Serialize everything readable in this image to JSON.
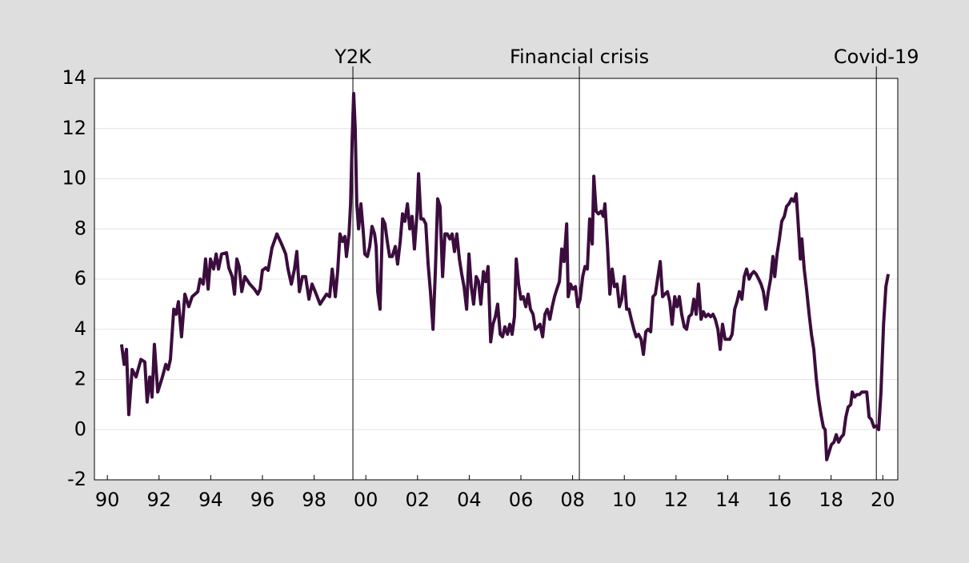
{
  "chart_data": {
    "type": "line",
    "x": [
      1991.05,
      1991.15,
      1991.24,
      1991.33,
      1991.46,
      1991.61,
      1991.8,
      1991.95,
      1992.04,
      1992.14,
      1992.23,
      1992.32,
      1992.45,
      1992.63,
      1992.76,
      1992.85,
      1992.94,
      1993.07,
      1993.16,
      1993.25,
      1993.37,
      1993.5,
      1993.65,
      1993.78,
      1994.0,
      1994.09,
      1994.21,
      1994.3,
      1994.4,
      1994.49,
      1994.61,
      1994.71,
      1994.8,
      1994.92,
      1995.11,
      1995.2,
      1995.33,
      1995.42,
      1995.51,
      1995.6,
      1995.7,
      1995.82,
      1996.01,
      1996.19,
      1996.32,
      1996.41,
      1996.5,
      1996.63,
      1996.72,
      1996.87,
      1997.06,
      1997.24,
      1997.4,
      1997.49,
      1997.62,
      1997.74,
      1997.83,
      1997.93,
      1998.05,
      1998.17,
      1998.3,
      1998.42,
      1998.58,
      1998.73,
      1998.98,
      1999.1,
      1999.2,
      1999.32,
      1999.41,
      1999.5,
      1999.6,
      1999.69,
      1999.75,
      1999.85,
      1999.91,
      1999.97,
      2000.03,
      2000.09,
      2000.15,
      2000.22,
      2000.31,
      2000.4,
      2000.46,
      2000.56,
      2000.65,
      2000.74,
      2000.84,
      2000.9,
      2000.96,
      2001.05,
      2001.15,
      2001.24,
      2001.33,
      2001.42,
      2001.52,
      2001.64,
      2001.73,
      2001.83,
      2001.92,
      2002.01,
      2002.11,
      2002.2,
      2002.29,
      2002.38,
      2002.48,
      2002.54,
      2002.63,
      2002.72,
      2002.82,
      2002.91,
      2003.0,
      2003.1,
      2003.19,
      2003.28,
      2003.37,
      2003.47,
      2003.56,
      2003.65,
      2003.75,
      2003.84,
      2003.93,
      2004.02,
      2004.12,
      2004.21,
      2004.3,
      2004.4,
      2004.49,
      2004.58,
      2004.67,
      2004.77,
      2004.86,
      2004.95,
      2005.05,
      2005.14,
      2005.23,
      2005.33,
      2005.42,
      2005.51,
      2005.6,
      2005.7,
      2005.79,
      2005.88,
      2005.98,
      2006.07,
      2006.16,
      2006.25,
      2006.32,
      2006.41,
      2006.5,
      2006.59,
      2006.69,
      2006.78,
      2006.87,
      2006.97,
      2007.06,
      2007.15,
      2007.24,
      2007.34,
      2007.43,
      2007.52,
      2007.62,
      2007.71,
      2007.8,
      2007.89,
      2007.99,
      2008.08,
      2008.17,
      2008.27,
      2008.33,
      2008.42,
      2008.51,
      2008.61,
      2008.7,
      2008.79,
      2008.89,
      2008.98,
      2009.07,
      2009.16,
      2009.26,
      2009.32,
      2009.41,
      2009.5,
      2009.6,
      2009.69,
      2009.75,
      2009.85,
      2009.94,
      2010.03,
      2010.12,
      2010.22,
      2010.31,
      2010.4,
      2010.5,
      2010.59,
      2010.68,
      2010.77,
      2010.87,
      2010.96,
      2011.05,
      2011.15,
      2011.24,
      2011.33,
      2011.42,
      2011.52,
      2011.61,
      2011.7,
      2011.8,
      2011.89,
      2011.98,
      2012.07,
      2012.17,
      2012.26,
      2012.35,
      2012.45,
      2012.54,
      2012.63,
      2012.72,
      2012.82,
      2012.91,
      2013.0,
      2013.1,
      2013.19,
      2013.28,
      2013.37,
      2013.47,
      2013.56,
      2013.65,
      2013.75,
      2013.84,
      2013.93,
      2014.02,
      2014.12,
      2014.21,
      2014.3,
      2014.4,
      2014.49,
      2014.58,
      2014.67,
      2014.77,
      2014.86,
      2014.95,
      2015.05,
      2015.14,
      2015.23,
      2015.33,
      2015.42,
      2015.51,
      2015.6,
      2015.7,
      2015.79,
      2015.88,
      2015.98,
      2016.07,
      2016.16,
      2016.25,
      2016.32,
      2016.41,
      2016.5,
      2016.59,
      2016.69,
      2016.78,
      2016.87,
      2016.97,
      2017.06,
      2017.15,
      2017.24,
      2017.31,
      2017.37,
      2017.46,
      2017.55,
      2017.65,
      2017.74,
      2017.83,
      2017.93,
      2018.02,
      2018.11,
      2018.2,
      2018.27,
      2018.33,
      2018.42,
      2018.51,
      2018.61,
      2018.7,
      2018.79,
      2018.89,
      2018.98,
      2019.07,
      2019.16,
      2019.26,
      2019.32,
      2019.41,
      2019.5,
      2019.6,
      2019.69,
      2019.78,
      2019.88,
      2019.97,
      2020.06,
      2020.16,
      2020.25,
      2020.34,
      2020.43,
      2020.53,
      2020.62,
      2020.71
    ],
    "series": [
      {
        "color": "#3b0d3d",
        "values": [
          3.4,
          2.6,
          3.2,
          0.6,
          2.4,
          2.1,
          2.8,
          2.7,
          1.1,
          2.1,
          1.3,
          3.4,
          1.5,
          2.1,
          2.6,
          2.4,
          2.8,
          4.8,
          4.6,
          5.1,
          3.7,
          5.4,
          4.9,
          5.3,
          5.5,
          6.0,
          5.8,
          6.8,
          5.6,
          6.8,
          6.4,
          7.0,
          6.4,
          7.0,
          7.05,
          6.45,
          6.1,
          5.4,
          6.8,
          6.5,
          5.5,
          6.1,
          5.8,
          5.6,
          5.4,
          5.6,
          6.35,
          6.45,
          6.35,
          7.25,
          7.8,
          7.4,
          7.0,
          6.4,
          5.8,
          6.4,
          7.1,
          5.5,
          6.1,
          6.1,
          5.2,
          5.8,
          5.4,
          5.0,
          5.4,
          5.3,
          6.4,
          5.3,
          6.3,
          7.8,
          7.5,
          7.7,
          6.9,
          7.8,
          9.0,
          11.5,
          13.4,
          12.0,
          9.0,
          8.0,
          9.0,
          7.9,
          7.0,
          6.9,
          7.3,
          8.1,
          7.8,
          7.3,
          5.5,
          4.8,
          8.4,
          8.2,
          7.5,
          6.9,
          6.9,
          7.3,
          6.6,
          7.5,
          8.6,
          8.3,
          9.0,
          8.0,
          8.5,
          7.2,
          8.6,
          10.2,
          8.4,
          8.4,
          8.2,
          6.6,
          5.5,
          4.0,
          6.3,
          9.2,
          8.9,
          6.1,
          7.8,
          7.8,
          7.6,
          7.8,
          7.1,
          7.8,
          6.8,
          6.2,
          5.7,
          4.8,
          7.0,
          5.7,
          5.0,
          6.1,
          5.9,
          5.0,
          6.3,
          5.9,
          6.5,
          3.5,
          4.2,
          4.5,
          5.0,
          3.8,
          3.7,
          4.1,
          3.8,
          4.2,
          3.8,
          4.5,
          6.8,
          5.8,
          5.2,
          5.3,
          4.9,
          5.4,
          4.8,
          4.6,
          4.0,
          4.1,
          4.2,
          3.7,
          4.6,
          4.8,
          4.4,
          4.9,
          5.3,
          5.6,
          5.9,
          7.2,
          6.7,
          8.2,
          5.3,
          5.8,
          5.6,
          5.7,
          4.9,
          5.2,
          6.1,
          6.5,
          6.4,
          8.4,
          7.4,
          10.1,
          8.7,
          8.6,
          8.7,
          8.5,
          9.0,
          7.3,
          5.4,
          6.4,
          5.7,
          5.8,
          4.9,
          5.2,
          6.1,
          4.8,
          4.8,
          4.4,
          4.0,
          3.7,
          3.8,
          3.6,
          3.0,
          3.9,
          4.0,
          3.9,
          5.3,
          5.4,
          6.1,
          6.7,
          5.3,
          5.4,
          5.5,
          5.1,
          4.2,
          5.3,
          4.9,
          5.3,
          4.6,
          4.1,
          4.0,
          4.5,
          4.6,
          5.2,
          4.6,
          5.8,
          4.4,
          4.7,
          4.5,
          4.6,
          4.5,
          4.6,
          4.4,
          4.0,
          3.2,
          4.2,
          3.6,
          3.6,
          3.6,
          3.8,
          4.8,
          5.1,
          5.5,
          5.2,
          6.1,
          6.4,
          6.0,
          6.2,
          6.3,
          6.2,
          6.0,
          5.8,
          5.5,
          4.8,
          5.5,
          6.0,
          6.9,
          6.1,
          7.0,
          7.6,
          8.3,
          8.5,
          8.9,
          9.0,
          9.2,
          9.1,
          9.4,
          8.0,
          6.8,
          7.6,
          6.4,
          5.6,
          4.6,
          3.8,
          3.2,
          2.0,
          1.2,
          0.6,
          0.1,
          0.0,
          -1.2,
          -0.9,
          -0.6,
          -0.5,
          -0.2,
          -0.5,
          -0.3,
          -0.2,
          0.5,
          0.9,
          1.0,
          1.5,
          1.3,
          1.4,
          1.4,
          1.5,
          1.5,
          1.5,
          0.5,
          0.4,
          0.1,
          0.15,
          0.0,
          1.5,
          4.2,
          5.7,
          6.2
        ]
      }
    ],
    "xlim": [
      1990,
      2021.08
    ],
    "xticks": [
      {
        "value": 1990.5,
        "label": "90"
      },
      {
        "value": 1992.5,
        "label": "92"
      },
      {
        "value": 1994.5,
        "label": "94"
      },
      {
        "value": 1996.5,
        "label": "96"
      },
      {
        "value": 1998.5,
        "label": "98"
      },
      {
        "value": 2000.5,
        "label": "00"
      },
      {
        "value": 2002.5,
        "label": "02"
      },
      {
        "value": 2004.5,
        "label": "04"
      },
      {
        "value": 2006.5,
        "label": "06"
      },
      {
        "value": 2008.5,
        "label": "08"
      },
      {
        "value": 2010.5,
        "label": "10"
      },
      {
        "value": 2012.5,
        "label": "12"
      },
      {
        "value": 2014.5,
        "label": "14"
      },
      {
        "value": 2016.5,
        "label": "16"
      },
      {
        "value": 2018.5,
        "label": "18"
      },
      {
        "value": 2020.5,
        "label": "20"
      }
    ],
    "ylim": [
      -2,
      14
    ],
    "yticks": [
      {
        "value": -2,
        "label": "-2"
      },
      0,
      2,
      4,
      6,
      8,
      10,
      12,
      14
    ],
    "grid": true,
    "annotations": [
      {
        "x": 2000.0,
        "label": "Y2K"
      },
      {
        "x": 2008.76,
        "label": "Financial crisis"
      },
      {
        "x": 2020.25,
        "label": "Covid-19"
      }
    ]
  }
}
